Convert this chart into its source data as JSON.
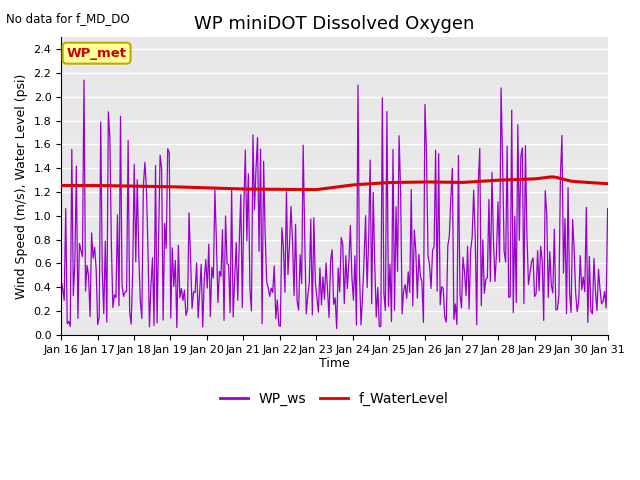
{
  "title": "WP miniDOT Dissolved Oxygen",
  "no_data_text": "No data for f_MD_DO",
  "ylabel": "Wind Speed (m/s), Water Level (psi)",
  "xlabel": "Time",
  "xlabels": [
    "Jan 16",
    "Jan 17",
    "Jan 18",
    "Jan 19",
    "Jan 20",
    "Jan 21",
    "Jan 22",
    "Jan 23",
    "Jan 24",
    "Jan 25",
    "Jan 26",
    "Jan 27",
    "Jan 28",
    "Jan 29",
    "Jan 30",
    "Jan 31"
  ],
  "ylim": [
    0.0,
    2.5
  ],
  "yticks": [
    0.0,
    0.2,
    0.4,
    0.6,
    0.8,
    1.0,
    1.2,
    1.4,
    1.6,
    1.8,
    2.0,
    2.2,
    2.4
  ],
  "wp_ws_color": "#9900CC",
  "f_wl_color": "#DD0000",
  "legend_labels": [
    "WP_ws",
    "f_WaterLevel"
  ],
  "annotation_box_text": "WP_met",
  "annotation_box_facecolor": "#FFFF99",
  "annotation_box_edgecolor": "#BBAA00",
  "plot_bg_color": "#E8E8E8",
  "grid_color": "white",
  "title_fontsize": 13,
  "axis_fontsize": 9,
  "tick_fontsize": 8,
  "legend_fontsize": 10
}
